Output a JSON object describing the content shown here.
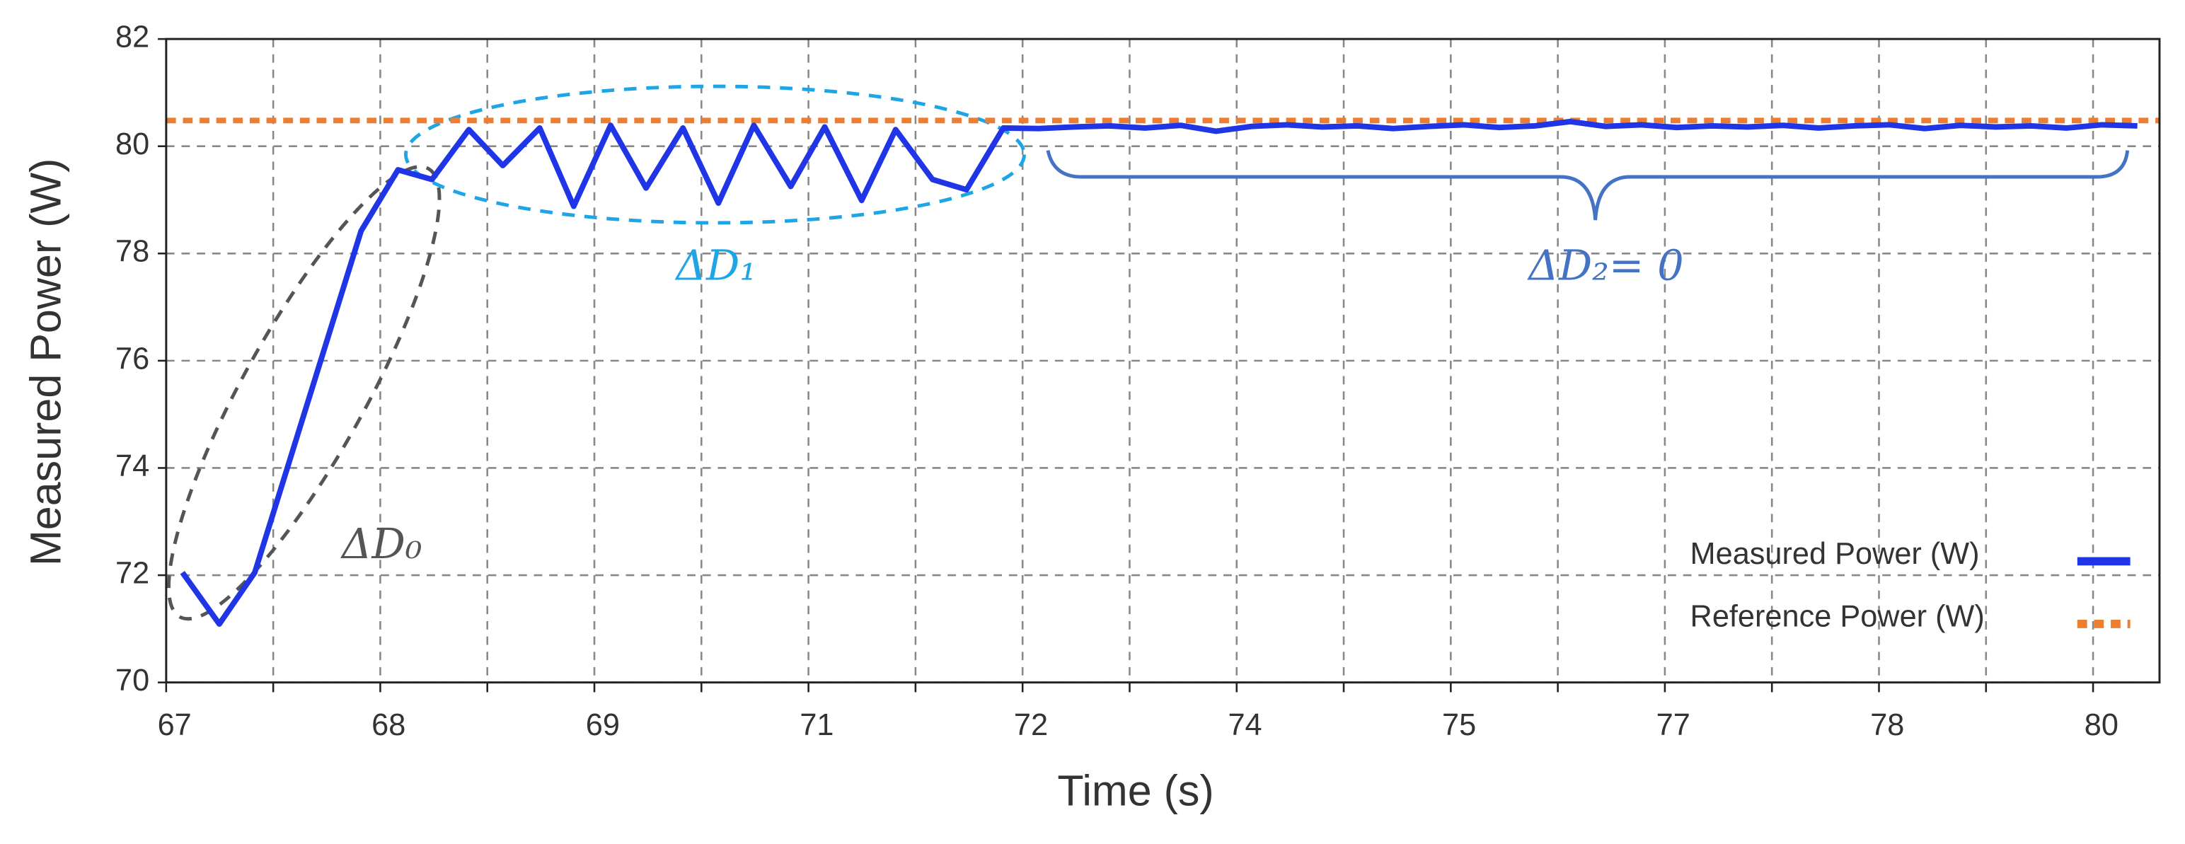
{
  "chart_data": {
    "type": "line",
    "xlabel": "Time (s)",
    "ylabel": "Measured Power (W)",
    "xlim": [
      67,
      80.5
    ],
    "ylim": [
      70,
      82
    ],
    "xticks": [
      {
        "value": 67,
        "label": "67"
      },
      {
        "value": 68.45,
        "label": "68"
      },
      {
        "value": 69.9,
        "label": "69"
      },
      {
        "value": 71.35,
        "label": "71"
      },
      {
        "value": 72.8,
        "label": "72"
      },
      {
        "value": 74.25,
        "label": "74"
      },
      {
        "value": 75.7,
        "label": "75"
      },
      {
        "value": 77.15,
        "label": "77"
      },
      {
        "value": 78.6,
        "label": "78"
      },
      {
        "value": 80.05,
        "label": "80"
      }
    ],
    "x_minor_ticks": [
      67.725,
      69.175,
      70.625,
      72.075,
      73.525,
      74.975,
      76.425,
      77.875,
      79.325
    ],
    "yticks": [
      70,
      72,
      74,
      76,
      78,
      80,
      82
    ],
    "grid": true,
    "legend": "lower right",
    "series": [
      {
        "name": "Measured Power (W)",
        "color": "#1f35e6",
        "style": "solid",
        "x": [
          67.11,
          67.36,
          67.6,
          68.32,
          68.57,
          68.8,
          69.05,
          69.28,
          69.53,
          69.76,
          70.01,
          70.25,
          70.5,
          70.74,
          70.98,
          71.23,
          71.46,
          71.71,
          71.94,
          72.19,
          72.42,
          72.67,
          72.91,
          73.15,
          73.39,
          73.63,
          73.87,
          74.11,
          74.35,
          74.59,
          74.83,
          75.07,
          75.31,
          75.55,
          75.79,
          76.03,
          76.27,
          76.51,
          76.75,
          76.99,
          77.23,
          77.47,
          77.71,
          77.95,
          78.19,
          78.43,
          78.67,
          78.91,
          79.15,
          79.39,
          79.63,
          79.87,
          80.11,
          80.35
        ],
        "values": [
          72.05,
          71.09,
          72.05,
          78.42,
          79.56,
          79.38,
          80.31,
          79.64,
          80.34,
          78.88,
          80.39,
          79.22,
          80.34,
          78.94,
          80.39,
          79.25,
          80.36,
          78.99,
          80.31,
          79.38,
          79.19,
          80.34,
          80.33,
          80.36,
          80.38,
          80.34,
          80.39,
          80.28,
          80.37,
          80.4,
          80.36,
          80.38,
          80.33,
          80.37,
          80.4,
          80.35,
          80.38,
          80.46,
          80.37,
          80.4,
          80.35,
          80.38,
          80.36,
          80.39,
          80.34,
          80.38,
          80.4,
          80.33,
          80.39,
          80.36,
          80.38,
          80.34,
          80.4,
          80.38
        ]
      },
      {
        "name": "Reference Power (W)",
        "color": "#ed7d31",
        "style": "dotted",
        "x": [
          67,
          80.5
        ],
        "values": [
          80.48,
          80.48
        ]
      }
    ],
    "annotations": [
      "ΔD₀",
      "ΔD₁",
      "ΔD₂= 0"
    ]
  }
}
